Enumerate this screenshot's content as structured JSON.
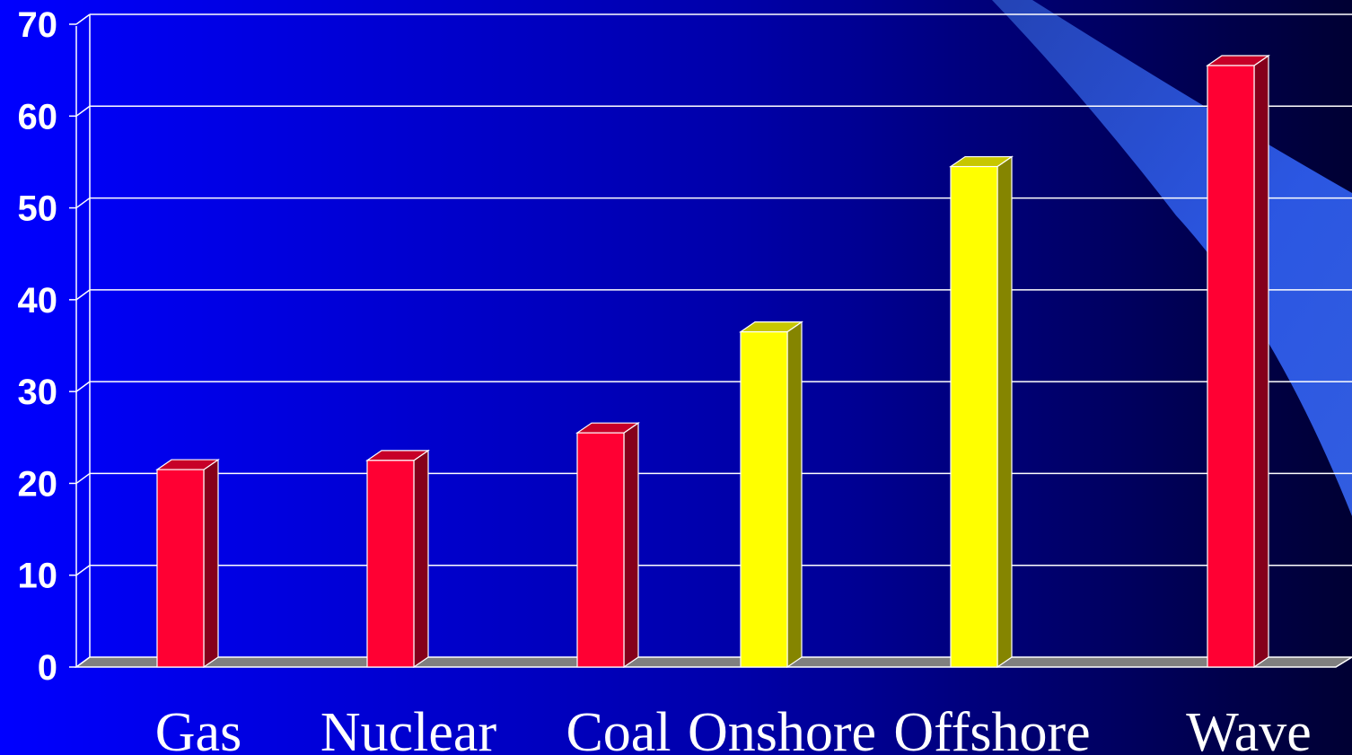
{
  "chart_data": {
    "type": "bar",
    "categories": [
      "Gas",
      "Nuclear",
      "Coal",
      "Onshore",
      "Offshore",
      "Wave"
    ],
    "values": [
      21.5,
      22.5,
      25.5,
      36.5,
      54.5,
      65.5
    ],
    "ylim": [
      0,
      70
    ],
    "yticks": [
      "0",
      "10",
      "20",
      "30",
      "40",
      "50",
      "60",
      "70"
    ],
    "grid": true,
    "bar_colors": [
      "#ff0033",
      "#ff0033",
      "#ff0033",
      "#ffff00",
      "#ffff00",
      "#ff0033"
    ],
    "colors": {
      "red_bar": "#ff0033",
      "yellow_bar": "#ffff00",
      "background_left": "#0000ff",
      "background_right": "#000033",
      "gridline": "#ffffff",
      "floor": "#7f7f7f",
      "swoosh": "#3366ff"
    }
  }
}
